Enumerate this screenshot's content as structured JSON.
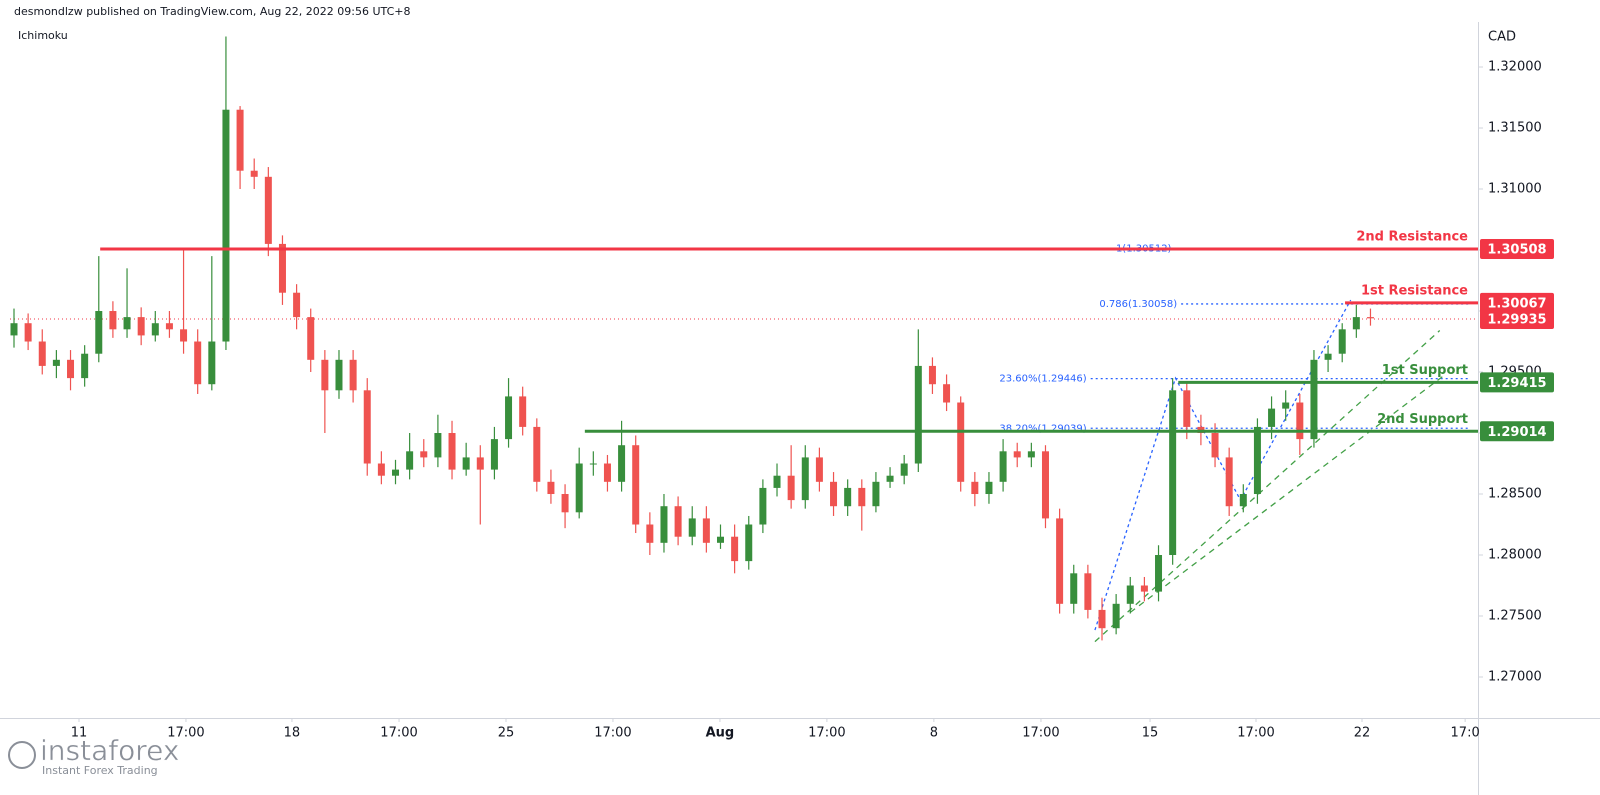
{
  "header": {
    "byline": "desmondlzw published on TradingView.com, Aug 22, 2022 09:56 UTC+8"
  },
  "chart_data": {
    "type": "candlestick",
    "title": "Ichimoku",
    "currency": "CAD",
    "up_color": "#388e3c",
    "down_color": "#ef5350",
    "xlim": [
      -0.283,
      103.61
    ],
    "ylim": [
      1.26664,
      1.32369
    ],
    "xticks": [
      {
        "value": 4.6,
        "label": "11"
      },
      {
        "value": 12.17,
        "label": "17:00"
      },
      {
        "value": 19.67,
        "label": "18"
      },
      {
        "value": 27.25,
        "label": "17:00"
      },
      {
        "value": 34.82,
        "label": "25"
      },
      {
        "value": 42.39,
        "label": "17:00"
      },
      {
        "value": 49.96,
        "label": "Aug"
      },
      {
        "value": 57.53,
        "label": "17:00"
      },
      {
        "value": 65.1,
        "label": "8"
      },
      {
        "value": 72.68,
        "label": "17:00"
      },
      {
        "value": 80.4,
        "label": "15"
      },
      {
        "value": 87.9,
        "label": "17:00"
      },
      {
        "value": 95.4,
        "label": "22"
      },
      {
        "value": 102.7,
        "label": "17:0"
      }
    ],
    "yticks": [
      {
        "value": 1.27,
        "label": "1.27000"
      },
      {
        "value": 1.275,
        "label": "1.27500"
      },
      {
        "value": 1.28,
        "label": "1.28000"
      },
      {
        "value": 1.285,
        "label": "1.28500"
      },
      {
        "value": 1.29,
        "label": "1.29000"
      },
      {
        "value": 1.295,
        "label": "1.29500"
      },
      {
        "value": 1.3,
        "label": "1.30000"
      },
      {
        "value": 1.305,
        "label": "1.30500"
      },
      {
        "value": 1.31,
        "label": "1.31000"
      },
      {
        "value": 1.315,
        "label": "1.31500"
      },
      {
        "value": 1.32,
        "label": "1.32000"
      }
    ],
    "open": [
      1.298,
      1.299,
      1.2975,
      1.2955,
      1.296,
      1.2945,
      1.2965,
      1.3,
      1.2985,
      1.2995,
      1.298,
      1.299,
      1.2985,
      1.2975,
      1.294,
      1.2975,
      1.3165,
      1.3115,
      1.311,
      1.3055,
      1.3015,
      1.2995,
      1.296,
      1.2935,
      1.296,
      1.2935,
      1.2875,
      1.2865,
      1.287,
      1.2885,
      1.288,
      1.29,
      1.287,
      1.288,
      1.287,
      1.2895,
      1.293,
      1.2905,
      1.286,
      1.285,
      1.2835,
      1.2875,
      1.2875,
      1.286,
      1.289,
      1.2825,
      1.281,
      1.284,
      1.2815,
      1.283,
      1.281,
      1.2815,
      1.2795,
      1.2825,
      1.2855,
      1.2865,
      1.2845,
      1.288,
      1.286,
      1.284,
      1.2855,
      1.284,
      1.286,
      1.2865,
      1.2875,
      1.2955,
      1.294,
      1.2925,
      1.286,
      1.285,
      1.286,
      1.2885,
      1.288,
      1.2885,
      1.283,
      1.276,
      1.2785,
      1.2755,
      1.274,
      1.276,
      1.2775,
      1.277,
      1.28,
      1.2935,
      1.2905,
      1.29,
      1.288,
      1.284,
      1.285,
      1.2905,
      1.292,
      1.2925,
      1.2895,
      1.296,
      1.2965,
      1.2985,
      1.2995
    ],
    "high": [
      1.3002,
      1.2998,
      1.2985,
      1.2968,
      1.2968,
      1.2972,
      1.3045,
      1.3008,
      1.3035,
      1.3003,
      1.3,
      1.3,
      1.3052,
      1.2985,
      1.3045,
      1.3225,
      1.3168,
      1.3125,
      1.3118,
      1.3062,
      1.3022,
      1.3002,
      1.2968,
      1.2968,
      1.2968,
      1.2945,
      1.2885,
      1.2878,
      1.29,
      1.2895,
      1.2915,
      1.291,
      1.2892,
      1.289,
      1.2905,
      1.2945,
      1.2938,
      1.2912,
      1.287,
      1.2858,
      1.2888,
      1.2885,
      1.2882,
      1.291,
      1.2898,
      1.2835,
      1.285,
      1.2848,
      1.284,
      1.284,
      1.2825,
      1.2825,
      1.2832,
      1.2862,
      1.2875,
      1.289,
      1.289,
      1.2888,
      1.2868,
      1.2862,
      1.2862,
      1.2868,
      1.2872,
      1.2882,
      1.2985,
      1.2962,
      1.2948,
      1.293,
      1.2868,
      1.2868,
      1.2895,
      1.2892,
      1.2892,
      1.289,
      1.2838,
      1.2792,
      1.2792,
      1.2765,
      1.2768,
      1.2782,
      1.2782,
      1.2808,
      1.2945,
      1.2942,
      1.2915,
      1.2908,
      1.2888,
      1.2858,
      1.2912,
      1.293,
      1.2935,
      1.2932,
      1.2968,
      1.2972,
      1.299,
      1.3005,
      1.3002
    ],
    "low": [
      1.297,
      1.2968,
      1.2948,
      1.2945,
      1.2935,
      1.2938,
      1.2958,
      1.2978,
      1.2978,
      1.2972,
      1.2975,
      1.2978,
      1.2965,
      1.2932,
      1.2935,
      1.2968,
      1.31,
      1.31,
      1.3045,
      1.3005,
      1.2985,
      1.295,
      1.29,
      1.2928,
      1.2925,
      1.2865,
      1.2858,
      1.2858,
      1.2862,
      1.2872,
      1.2872,
      1.2862,
      1.2865,
      1.2825,
      1.2862,
      1.2888,
      1.2898,
      1.2852,
      1.2842,
      1.2822,
      1.283,
      1.2865,
      1.2852,
      1.2852,
      1.2818,
      1.28,
      1.2802,
      1.2808,
      1.2808,
      1.2802,
      1.2805,
      1.2785,
      1.2788,
      1.2818,
      1.2848,
      1.2838,
      1.2838,
      1.2852,
      1.2832,
      1.2832,
      1.282,
      1.2835,
      1.2855,
      1.2858,
      1.2868,
      1.2932,
      1.2918,
      1.2852,
      1.284,
      1.2842,
      1.2852,
      1.2872,
      1.2872,
      1.2822,
      1.2752,
      1.2752,
      1.2748,
      1.273,
      1.2735,
      1.2752,
      1.2762,
      1.2762,
      1.2792,
      1.2895,
      1.289,
      1.2872,
      1.2832,
      1.2835,
      1.2842,
      1.2895,
      1.291,
      1.2882,
      1.2888,
      1.295,
      1.2958,
      1.2978,
      1.2988
    ],
    "close": [
      1.299,
      1.2975,
      1.2955,
      1.296,
      1.2945,
      1.2965,
      1.3,
      1.2985,
      1.2995,
      1.298,
      1.299,
      1.2985,
      1.2975,
      1.294,
      1.2975,
      1.3165,
      1.3115,
      1.311,
      1.3055,
      1.3015,
      1.2995,
      1.296,
      1.2935,
      1.296,
      1.2935,
      1.2875,
      1.2865,
      1.287,
      1.2885,
      1.288,
      1.29,
      1.287,
      1.288,
      1.287,
      1.2895,
      1.293,
      1.2905,
      1.286,
      1.285,
      1.2835,
      1.2875,
      1.2875,
      1.286,
      1.289,
      1.2825,
      1.281,
      1.284,
      1.2815,
      1.283,
      1.281,
      1.2815,
      1.2795,
      1.2825,
      1.2855,
      1.2865,
      1.2845,
      1.288,
      1.286,
      1.284,
      1.2855,
      1.284,
      1.286,
      1.2865,
      1.2875,
      1.2955,
      1.294,
      1.2925,
      1.286,
      1.285,
      1.286,
      1.2885,
      1.288,
      1.2885,
      1.283,
      1.276,
      1.2785,
      1.2755,
      1.274,
      1.276,
      1.2775,
      1.277,
      1.28,
      1.2935,
      1.2905,
      1.29,
      1.288,
      1.284,
      1.285,
      1.2905,
      1.292,
      1.2925,
      1.2895,
      1.296,
      1.2965,
      1.2985,
      1.2995,
      1.2994
    ],
    "levels": [
      {
        "name": "2nd Resistance",
        "value": 1.30508,
        "color": "#f23645",
        "start": 6.1
      },
      {
        "name": "1st Resistance",
        "value": 1.30067,
        "color": "#f23645",
        "start": 94.2
      },
      {
        "name": "1st Support",
        "value": 1.29415,
        "color": "#388e3c",
        "start": 82.4
      },
      {
        "name": "2nd Support",
        "value": 1.29014,
        "color": "#388e3c",
        "start": 40.4
      }
    ],
    "last_price": {
      "value": 1.29935,
      "color": "#f23645"
    },
    "fib_levels": [
      {
        "label": "1(1.30512)",
        "value": 1.30512,
        "start": 82.2
      },
      {
        "label": "0.786(1.30058)",
        "value": 1.30058,
        "start": 82.6
      },
      {
        "label": "23.60%(1.29446)",
        "value": 1.29446,
        "start": 76.2
      },
      {
        "label": "38.20%(1.29039)",
        "value": 1.29039,
        "start": 76.2
      }
    ],
    "fib_color": "#2962ff",
    "trendlines": [
      {
        "color": "#2962ff",
        "x": [
          76.5,
          82.2,
          86.8,
          94.6
        ],
        "y": [
          1.27385,
          1.2945,
          1.2845,
          1.3009
        ]
      },
      {
        "color": "#43a047",
        "x": [
          76.5,
          100.9
        ],
        "y": [
          1.2729,
          1.2984
        ]
      },
      {
        "color": "#43a047",
        "x": [
          79,
          101.3
        ],
        "y": [
          1.2753,
          1.2948
        ]
      }
    ]
  },
  "watermark": {
    "brand": "instaforex",
    "tagline": "Instant Forex Trading"
  }
}
